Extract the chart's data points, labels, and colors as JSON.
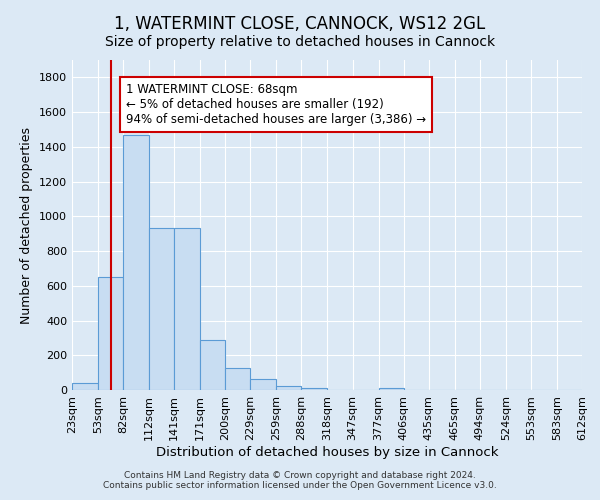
{
  "title": "1, WATERMINT CLOSE, CANNOCK, WS12 2GL",
  "subtitle": "Size of property relative to detached houses in Cannock",
  "xlabel": "Distribution of detached houses by size in Cannock",
  "ylabel": "Number of detached properties",
  "footer_line1": "Contains HM Land Registry data © Crown copyright and database right 2024.",
  "footer_line2": "Contains public sector information licensed under the Open Government Licence v3.0.",
  "bin_edges": [
    23,
    53,
    82,
    112,
    141,
    171,
    200,
    229,
    259,
    288,
    318,
    347,
    377,
    406,
    435,
    465,
    494,
    524,
    553,
    583,
    612
  ],
  "bar_heights": [
    38,
    650,
    1470,
    935,
    935,
    290,
    125,
    62,
    22,
    12,
    0,
    0,
    12,
    0,
    0,
    0,
    0,
    0,
    0,
    0
  ],
  "bar_facecolor": "#c8ddf2",
  "bar_edgecolor": "#5b9bd5",
  "background_color": "#dce9f5",
  "grid_color": "#ffffff",
  "vline_x": 68,
  "vline_color": "#cc0000",
  "annotation_line1": "1 WATERMINT CLOSE: 68sqm",
  "annotation_line2": "← 5% of detached houses are smaller (192)",
  "annotation_line3": "94% of semi-detached houses are larger (3,386) →",
  "annotation_box_color": "#ffffff",
  "annotation_box_edgecolor": "#cc0000",
  "ylim": [
    0,
    1900
  ],
  "yticks": [
    0,
    200,
    400,
    600,
    800,
    1000,
    1200,
    1400,
    1600,
    1800
  ],
  "title_fontsize": 12,
  "subtitle_fontsize": 10,
  "xlabel_fontsize": 9.5,
  "ylabel_fontsize": 9,
  "tick_fontsize": 8,
  "annotation_fontsize": 8.5,
  "footer_fontsize": 6.5
}
